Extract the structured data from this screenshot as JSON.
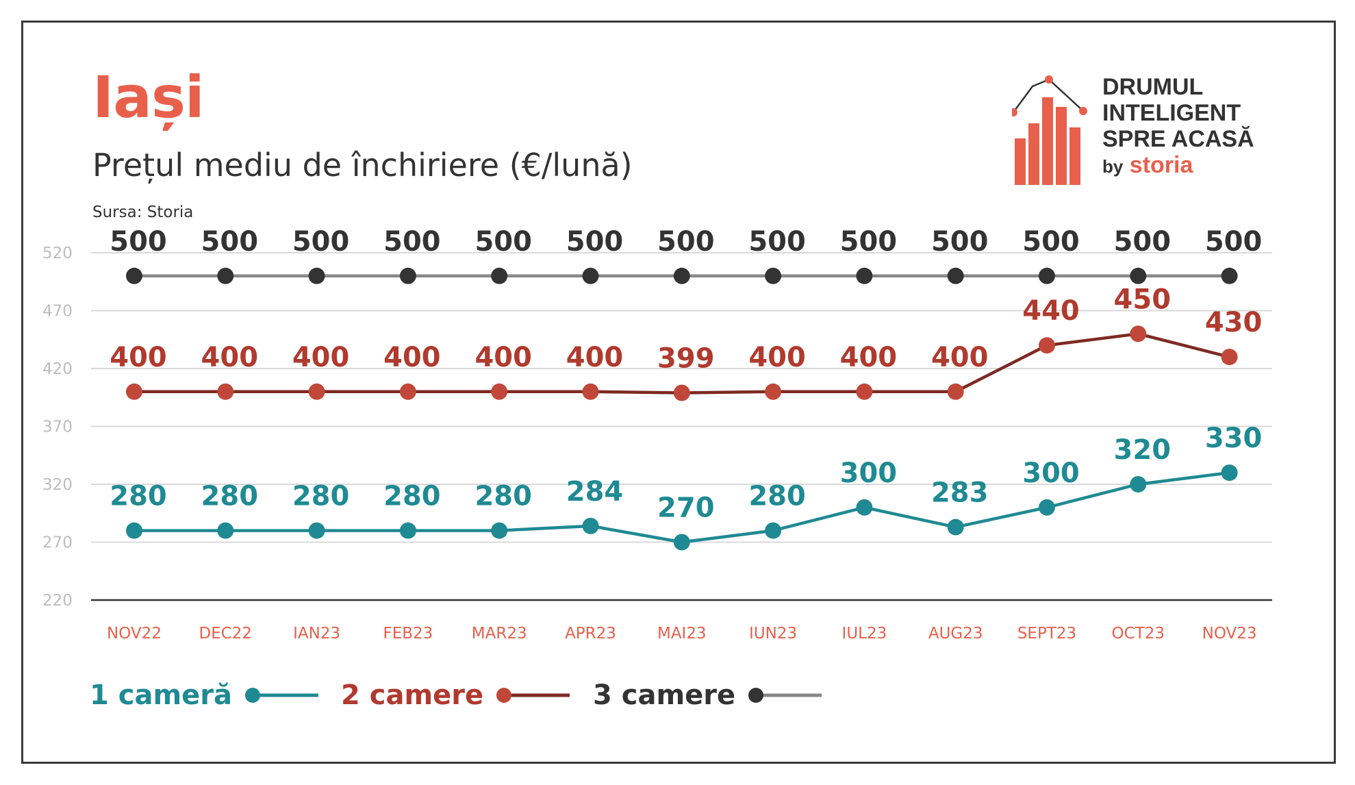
{
  "header": {
    "title": "Iași",
    "subtitle": "Prețul mediu de închiriere (€/lună)",
    "source": "Sursa: Storia"
  },
  "logo": {
    "line1": "DRUMUL",
    "line2": "INTELIGENT",
    "line3": "SPRE ACASĂ",
    "by": "by",
    "brand": "storia",
    "icon": "house-bar-chart-icon"
  },
  "colors": {
    "accent": "#e8604c",
    "series_1": "#1f8a93",
    "series_2": "#b03a2e",
    "series_3_marker": "#333333",
    "series_3_line": "#888888",
    "grid": "#d9d9d9",
    "tick_y": "#bdbdbd",
    "tick_x": "#e8604c"
  },
  "chart_data": {
    "type": "line",
    "title": "Prețul mediu de închiriere (€/lună)",
    "categories": [
      "NOV22",
      "DEC22",
      "IAN23",
      "FEB23",
      "MAR23",
      "APR23",
      "MAI23",
      "IUN23",
      "IUL23",
      "AUG23",
      "SEPT23",
      "OCT23",
      "NOV23"
    ],
    "yticks": [
      220,
      270,
      320,
      370,
      420,
      470,
      520
    ],
    "ylim": [
      220,
      520
    ],
    "grid": true,
    "legend_position": "bottom-left",
    "series": [
      {
        "name": "1 cameră",
        "values": [
          280,
          280,
          280,
          280,
          280,
          284,
          270,
          280,
          300,
          283,
          300,
          320,
          330
        ]
      },
      {
        "name": "2 camere",
        "values": [
          400,
          400,
          400,
          400,
          400,
          400,
          399,
          400,
          400,
          400,
          440,
          450,
          430
        ]
      },
      {
        "name": "3 camere",
        "values": [
          500,
          500,
          500,
          500,
          500,
          500,
          500,
          500,
          500,
          500,
          500,
          500,
          500
        ]
      }
    ]
  }
}
